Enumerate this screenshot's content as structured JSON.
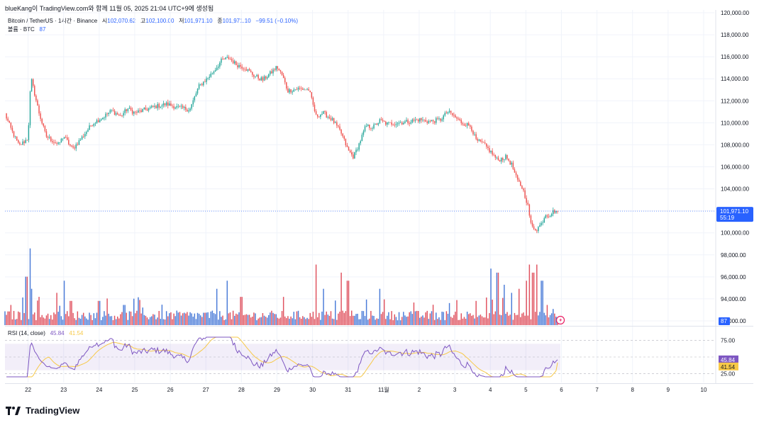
{
  "snapshot": "blueKang이 TradingView.com와 함께 11월 05, 2025 21:04 UTC+9에 생성됨",
  "legend": {
    "symbol": "Bitcoin / TetherUS · 1시간 · Binance",
    "open_label": "시",
    "open": "102,070.62",
    "high_label": "고",
    "high": "102,100.00",
    "low_label": "저",
    "low": "101,971.10",
    "close_label": "종",
    "close": "101,971.10",
    "change": "−99.51 (−0.10%)"
  },
  "volume_legend": {
    "label": "볼륨 · BTC",
    "value": "87"
  },
  "rsi_legend": {
    "label": "RSI (14, close)",
    "rsi": "45.84",
    "ma": "41.54"
  },
  "price_tag": {
    "price": "101,971.10",
    "countdown": "55:19"
  },
  "volume_tag": "87",
  "rsi_tags": {
    "rsi": "45.84",
    "ma": "41.54"
  },
  "footer": {
    "brand": "TradingView"
  },
  "colors": {
    "up": "#26a69a",
    "down": "#ef5350",
    "up_volume": "#4a7bd8",
    "down_volume": "#e0525f",
    "rsi_line": "#7e57c2",
    "rsi_ma": "#f7c948",
    "accent": "#2962ff"
  },
  "chart_data": [
    {
      "type": "candlestick",
      "title": "Bitcoin / TetherUS · 1시간 · Binance",
      "ylim": [
        92000,
        120000
      ],
      "y_ticks": [
        "120,000.00",
        "118,000.00",
        "116,000.00",
        "114,000.00",
        "112,000.00",
        "110,000.00",
        "108,000.00",
        "106,000.00",
        "104,000.00",
        "102,000.00",
        "100,000.00",
        "98,000.00",
        "96,000.00",
        "94,000.00",
        "92,000.00"
      ],
      "x_ticks": [
        "22",
        "23",
        "24",
        "25",
        "26",
        "27",
        "28",
        "29",
        "30",
        "31",
        "11월",
        "2",
        "3",
        "4",
        "5",
        "6",
        "7",
        "8",
        "9",
        "10"
      ],
      "x_tick_days": [
        0,
        1,
        2,
        3,
        4,
        5,
        6,
        7,
        8,
        9,
        10,
        11,
        12,
        13,
        14,
        15,
        16,
        17,
        18,
        19
      ],
      "x_range_days": [
        -0.65,
        19.3
      ],
      "anchors": [
        {
          "d": -0.65,
          "p": 110800
        },
        {
          "d": -0.45,
          "p": 109200
        },
        {
          "d": -0.25,
          "p": 107900
        },
        {
          "d": 0.0,
          "p": 108600
        },
        {
          "d": 0.05,
          "p": 112500
        },
        {
          "d": 0.1,
          "p": 113800
        },
        {
          "d": 0.3,
          "p": 111000
        },
        {
          "d": 0.5,
          "p": 108800
        },
        {
          "d": 0.85,
          "p": 108000
        },
        {
          "d": 1.0,
          "p": 108800
        },
        {
          "d": 1.25,
          "p": 107600
        },
        {
          "d": 1.5,
          "p": 108600
        },
        {
          "d": 1.8,
          "p": 109900
        },
        {
          "d": 2.1,
          "p": 110500
        },
        {
          "d": 2.35,
          "p": 111100
        },
        {
          "d": 2.6,
          "p": 110600
        },
        {
          "d": 2.8,
          "p": 111300
        },
        {
          "d": 3.0,
          "p": 110900
        },
        {
          "d": 3.3,
          "p": 111200
        },
        {
          "d": 3.6,
          "p": 111500
        },
        {
          "d": 3.9,
          "p": 111700
        },
        {
          "d": 4.2,
          "p": 111400
        },
        {
          "d": 4.55,
          "p": 111200
        },
        {
          "d": 4.8,
          "p": 113300
        },
        {
          "d": 5.0,
          "p": 113900
        },
        {
          "d": 5.2,
          "p": 114600
        },
        {
          "d": 5.45,
          "p": 115700
        },
        {
          "d": 5.65,
          "p": 115900
        },
        {
          "d": 5.85,
          "p": 115300
        },
        {
          "d": 6.1,
          "p": 115000
        },
        {
          "d": 6.35,
          "p": 114300
        },
        {
          "d": 6.6,
          "p": 113900
        },
        {
          "d": 6.85,
          "p": 114600
        },
        {
          "d": 7.0,
          "p": 115100
        },
        {
          "d": 7.15,
          "p": 114300
        },
        {
          "d": 7.3,
          "p": 112900
        },
        {
          "d": 7.6,
          "p": 113100
        },
        {
          "d": 7.9,
          "p": 113000
        },
        {
          "d": 8.1,
          "p": 110600
        },
        {
          "d": 8.3,
          "p": 110900
        },
        {
          "d": 8.55,
          "p": 110300
        },
        {
          "d": 8.8,
          "p": 109100
        },
        {
          "d": 9.0,
          "p": 107500
        },
        {
          "d": 9.15,
          "p": 106900
        },
        {
          "d": 9.3,
          "p": 108000
        },
        {
          "d": 9.5,
          "p": 109700
        },
        {
          "d": 9.7,
          "p": 109600
        },
        {
          "d": 9.9,
          "p": 110200
        },
        {
          "d": 10.1,
          "p": 109900
        },
        {
          "d": 10.4,
          "p": 110000
        },
        {
          "d": 10.7,
          "p": 110100
        },
        {
          "d": 11.0,
          "p": 110300
        },
        {
          "d": 11.3,
          "p": 110100
        },
        {
          "d": 11.6,
          "p": 110300
        },
        {
          "d": 11.8,
          "p": 111000
        },
        {
          "d": 11.9,
          "p": 110800
        },
        {
          "d": 12.2,
          "p": 110000
        },
        {
          "d": 12.45,
          "p": 109700
        },
        {
          "d": 12.6,
          "p": 108400
        },
        {
          "d": 12.8,
          "p": 108100
        },
        {
          "d": 13.0,
          "p": 107400
        },
        {
          "d": 13.2,
          "p": 106600
        },
        {
          "d": 13.45,
          "p": 106900
        },
        {
          "d": 13.6,
          "p": 106200
        },
        {
          "d": 13.75,
          "p": 104800
        },
        {
          "d": 13.9,
          "p": 104100
        },
        {
          "d": 14.05,
          "p": 102600
        },
        {
          "d": 14.15,
          "p": 100600
        },
        {
          "d": 14.3,
          "p": 100300
        },
        {
          "d": 14.45,
          "p": 100900
        },
        {
          "d": 14.55,
          "p": 101700
        },
        {
          "d": 14.65,
          "p": 101600
        },
        {
          "d": 14.8,
          "p": 102000
        },
        {
          "d": 14.9,
          "p": 101971.1
        }
      ],
      "last_price": 101971.1
    },
    {
      "type": "bar",
      "title": "볼륨 · BTC",
      "last_value": 87,
      "spikes": [
        {
          "d": -0.5,
          "h": 0.25
        },
        {
          "d": -0.05,
          "h": 0.6
        },
        {
          "d": 0.05,
          "h": 0.95
        },
        {
          "d": 0.1,
          "h": 0.45
        },
        {
          "d": 0.3,
          "h": 0.35
        },
        {
          "d": 0.8,
          "h": 0.4
        },
        {
          "d": 1.0,
          "h": 0.55
        },
        {
          "d": 1.2,
          "h": 0.3
        },
        {
          "d": 2.0,
          "h": 0.3
        },
        {
          "d": 2.7,
          "h": 0.25
        },
        {
          "d": 5.3,
          "h": 0.45
        },
        {
          "d": 5.6,
          "h": 0.55
        },
        {
          "d": 6.0,
          "h": 0.35
        },
        {
          "d": 7.2,
          "h": 0.35
        },
        {
          "d": 8.1,
          "h": 0.75
        },
        {
          "d": 8.3,
          "h": 0.45
        },
        {
          "d": 8.8,
          "h": 0.65
        },
        {
          "d": 9.0,
          "h": 0.55
        },
        {
          "d": 9.9,
          "h": 0.45
        },
        {
          "d": 12.6,
          "h": 0.3
        },
        {
          "d": 13.0,
          "h": 0.7
        },
        {
          "d": 13.2,
          "h": 0.65
        },
        {
          "d": 13.4,
          "h": 0.5
        },
        {
          "d": 13.6,
          "h": 0.4
        },
        {
          "d": 13.8,
          "h": 0.45
        },
        {
          "d": 14.0,
          "h": 0.55
        },
        {
          "d": 14.1,
          "h": 0.75
        },
        {
          "d": 14.2,
          "h": 0.65
        },
        {
          "d": 14.3,
          "h": 0.75
        },
        {
          "d": 14.45,
          "h": 0.55
        },
        {
          "d": 14.6,
          "h": 0.25
        },
        {
          "d": 14.75,
          "h": 0.2
        }
      ]
    },
    {
      "type": "line",
      "title": "RSI (14, close)",
      "ylim": [
        20,
        80
      ],
      "y_ticks": [
        "75.00",
        "25.00"
      ],
      "band": [
        30,
        70
      ],
      "series": [
        {
          "name": "RSI",
          "last": 45.84
        },
        {
          "name": "MA",
          "last": 41.54
        }
      ]
    }
  ]
}
